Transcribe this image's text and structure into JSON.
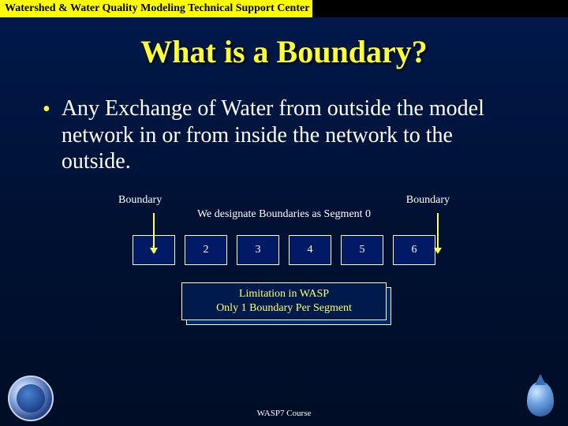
{
  "header": {
    "label": "Watershed & Water Quality Modeling Technical Support Center",
    "bg_color": "#ffff00"
  },
  "title": "What is a Boundary?",
  "bullet": {
    "marker": "•",
    "text": "Any Exchange of Water from outside the model network in or from inside the network to the outside."
  },
  "diagram": {
    "boundary_label_left": "Boundary",
    "boundary_label_right": "Boundary",
    "designate_text": "We designate Boundaries as Segment 0",
    "segments": [
      "1",
      "2",
      "3",
      "4",
      "5",
      "6"
    ],
    "segment_bg": "#001a66",
    "arrow_color": "#ffff66"
  },
  "note": {
    "line1": "Limitation in WASP",
    "line2": "Only 1 Boundary Per Segment",
    "text_color": "#ffff66"
  },
  "footer": {
    "course": "WASP7 Course"
  },
  "logos": {
    "left_name": "epa-seal",
    "right_name": "water-drop"
  },
  "colors": {
    "bg_top": "#001a4d",
    "bg_bottom": "#000d26",
    "title_color": "#ffff33",
    "body_text": "#ffffff"
  }
}
